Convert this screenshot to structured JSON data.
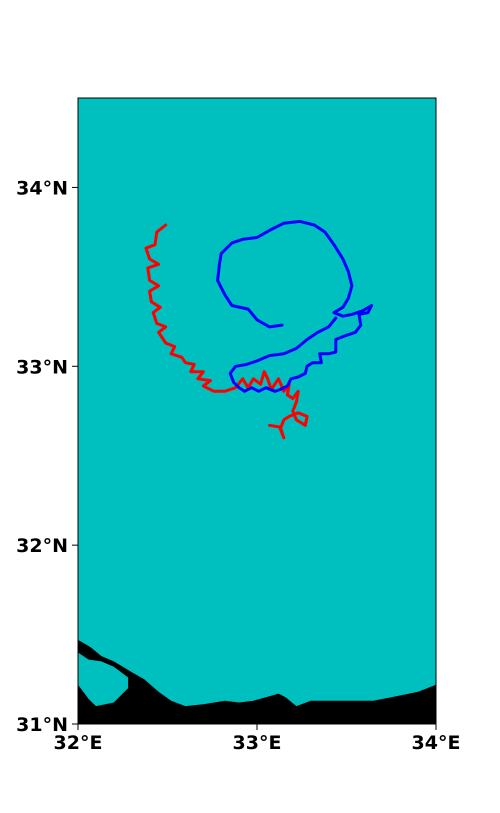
{
  "map": {
    "colors": {
      "sea": "#00bfbf",
      "land": "#000000",
      "track_red": "#ff0000",
      "track_blue": "#0000ff",
      "frame": "#000000"
    },
    "extent": {
      "lon": [
        32.0,
        34.0
      ],
      "lat": [
        31.0,
        34.5
      ]
    },
    "x_ticks": [
      {
        "value": 32,
        "label": "32°E"
      },
      {
        "value": 33,
        "label": "33°E"
      },
      {
        "value": 34,
        "label": "34°E"
      }
    ],
    "y_ticks": [
      {
        "value": 31,
        "label": "31°N"
      },
      {
        "value": 32,
        "label": "32°N"
      },
      {
        "value": 33,
        "label": "33°N"
      },
      {
        "value": 34,
        "label": "34°N"
      }
    ]
  },
  "chart_data": {
    "type": "line",
    "xlim": [
      32.0,
      34.0
    ],
    "ylim": [
      31.0,
      34.5
    ],
    "series": [
      {
        "color": "#ff0000",
        "points": [
          [
            32.49,
            33.79
          ],
          [
            32.44,
            33.75
          ],
          [
            32.43,
            33.68
          ],
          [
            32.38,
            33.66
          ],
          [
            32.4,
            33.6
          ],
          [
            32.45,
            33.57
          ],
          [
            32.39,
            33.55
          ],
          [
            32.4,
            33.48
          ],
          [
            32.45,
            33.45
          ],
          [
            32.4,
            33.42
          ],
          [
            32.41,
            33.36
          ],
          [
            32.46,
            33.33
          ],
          [
            32.42,
            33.3
          ],
          [
            32.44,
            33.24
          ],
          [
            32.49,
            33.22
          ],
          [
            32.45,
            33.19
          ],
          [
            32.49,
            33.13
          ],
          [
            32.54,
            33.11
          ],
          [
            32.52,
            33.07
          ],
          [
            32.58,
            33.05
          ],
          [
            32.6,
            33.02
          ],
          [
            32.65,
            33.01
          ],
          [
            32.63,
            32.97
          ],
          [
            32.7,
            32.97
          ],
          [
            32.67,
            32.93
          ],
          [
            32.74,
            32.92
          ],
          [
            32.7,
            32.89
          ],
          [
            32.76,
            32.86
          ],
          [
            32.82,
            32.86
          ],
          [
            32.88,
            32.88
          ],
          [
            32.92,
            32.93
          ],
          [
            32.95,
            32.88
          ],
          [
            32.98,
            32.93
          ],
          [
            33.02,
            32.9
          ],
          [
            33.04,
            32.97
          ],
          [
            33.06,
            32.93
          ],
          [
            33.08,
            32.87
          ],
          [
            33.12,
            32.93
          ],
          [
            33.15,
            32.86
          ],
          [
            33.18,
            32.9
          ],
          [
            33.17,
            32.84
          ],
          [
            33.2,
            32.82
          ],
          [
            33.23,
            32.86
          ],
          [
            33.22,
            32.8
          ],
          [
            33.2,
            32.75
          ],
          [
            33.22,
            32.7
          ],
          [
            33.27,
            32.67
          ],
          [
            33.28,
            32.72
          ],
          [
            33.23,
            32.74
          ],
          [
            33.18,
            32.72
          ],
          [
            33.15,
            32.7
          ],
          [
            33.13,
            32.65
          ],
          [
            33.15,
            32.6
          ],
          [
            33.13,
            32.66
          ],
          [
            33.07,
            32.67
          ]
        ]
      },
      {
        "color": "#0000ff",
        "points": [
          [
            33.14,
            33.23
          ],
          [
            33.07,
            33.22
          ],
          [
            33.0,
            33.26
          ],
          [
            32.95,
            33.32
          ],
          [
            32.86,
            33.34
          ],
          [
            32.82,
            33.4
          ],
          [
            32.78,
            33.48
          ],
          [
            32.79,
            33.57
          ],
          [
            32.8,
            33.63
          ],
          [
            32.86,
            33.69
          ],
          [
            32.92,
            33.71
          ],
          [
            33.0,
            33.72
          ],
          [
            33.07,
            33.76
          ],
          [
            33.15,
            33.8
          ],
          [
            33.24,
            33.81
          ],
          [
            33.32,
            33.79
          ],
          [
            33.38,
            33.75
          ],
          [
            33.43,
            33.68
          ],
          [
            33.48,
            33.6
          ],
          [
            33.51,
            33.53
          ],
          [
            33.53,
            33.45
          ],
          [
            33.51,
            33.38
          ],
          [
            33.48,
            33.33
          ],
          [
            33.43,
            33.3
          ],
          [
            33.48,
            33.28
          ],
          [
            33.53,
            33.29
          ],
          [
            33.59,
            33.31
          ],
          [
            33.64,
            33.34
          ],
          [
            33.62,
            33.3
          ],
          [
            33.57,
            33.29
          ],
          [
            33.58,
            33.23
          ],
          [
            33.55,
            33.19
          ],
          [
            33.49,
            33.17
          ],
          [
            33.44,
            33.15
          ],
          [
            33.44,
            33.08
          ],
          [
            33.4,
            33.07
          ],
          [
            33.35,
            33.07
          ],
          [
            33.36,
            33.02
          ],
          [
            33.31,
            33.02
          ],
          [
            33.28,
            33.0
          ],
          [
            33.27,
            32.96
          ],
          [
            33.23,
            32.94
          ],
          [
            33.19,
            32.93
          ],
          [
            33.17,
            32.89
          ],
          [
            33.13,
            32.87
          ],
          [
            33.1,
            32.86
          ],
          [
            33.05,
            32.88
          ],
          [
            33.01,
            32.86
          ],
          [
            32.97,
            32.88
          ],
          [
            32.93,
            32.86
          ],
          [
            32.9,
            32.88
          ],
          [
            32.87,
            32.91
          ],
          [
            32.85,
            32.96
          ],
          [
            32.88,
            33.0
          ],
          [
            32.94,
            33.01
          ],
          [
            33.0,
            33.03
          ],
          [
            33.07,
            33.06
          ],
          [
            33.15,
            33.07
          ],
          [
            33.22,
            33.1
          ],
          [
            33.28,
            33.15
          ],
          [
            33.34,
            33.19
          ],
          [
            33.4,
            33.22
          ],
          [
            33.44,
            33.27
          ]
        ]
      }
    ],
    "land": [
      [
        [
          32.0,
          31.0
        ],
        [
          32.0,
          31.47
        ],
        [
          32.07,
          31.43
        ],
        [
          32.13,
          31.38
        ],
        [
          32.2,
          31.35
        ],
        [
          32.3,
          31.29
        ],
        [
          32.37,
          31.25
        ],
        [
          32.45,
          31.18
        ],
        [
          32.52,
          31.13
        ],
        [
          32.6,
          31.1
        ],
        [
          32.7,
          31.11
        ],
        [
          32.82,
          31.13
        ],
        [
          32.9,
          31.12
        ],
        [
          32.98,
          31.13
        ],
        [
          33.05,
          31.15
        ],
        [
          33.12,
          31.17
        ],
        [
          33.16,
          31.15
        ],
        [
          33.22,
          31.1
        ],
        [
          33.3,
          31.13
        ],
        [
          33.37,
          31.13
        ],
        [
          33.5,
          31.13
        ],
        [
          33.65,
          31.13
        ],
        [
          33.75,
          31.15
        ],
        [
          33.9,
          31.18
        ],
        [
          34.0,
          31.22
        ],
        [
          34.0,
          31.0
        ]
      ]
    ],
    "sea_inlets": [
      [
        [
          32.0,
          31.4
        ],
        [
          32.06,
          31.36
        ],
        [
          32.13,
          31.35
        ],
        [
          32.2,
          31.32
        ],
        [
          32.28,
          31.26
        ],
        [
          32.28,
          31.2
        ],
        [
          32.2,
          31.12
        ],
        [
          32.1,
          31.1
        ],
        [
          32.06,
          31.14
        ],
        [
          32.0,
          31.22
        ]
      ]
    ]
  }
}
